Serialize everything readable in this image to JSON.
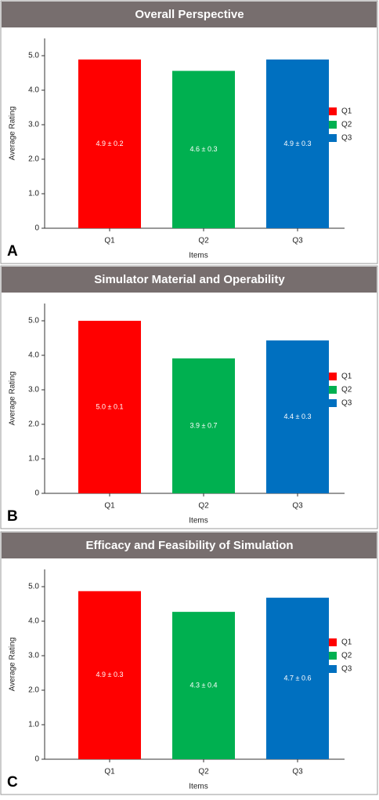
{
  "chart_data": [
    {
      "type": "bar",
      "title": "Overall Perspective",
      "panel_label": "A",
      "xlabel": "Items",
      "ylabel": "Average Rating",
      "categories": [
        "Q1",
        "Q2",
        "Q3"
      ],
      "values": [
        4.89,
        4.56,
        4.89
      ],
      "value_labels": [
        "4.9 ± 0.2",
        "4.6 ± 0.3",
        "4.9 ± 0.3"
      ],
      "colors": [
        "#ff0000",
        "#00b050",
        "#0070c0"
      ],
      "ylim": [
        0,
        5.5
      ],
      "yticks": [
        0,
        {
          "value": 1,
          "label": "1.0"
        },
        {
          "value": 2,
          "label": "2.0"
        },
        {
          "value": 3,
          "label": "3.0"
        },
        {
          "value": 4,
          "label": "4.0"
        },
        {
          "value": 5,
          "label": "5.0"
        }
      ],
      "legend": "right"
    },
    {
      "type": "bar",
      "title": "Simulator Material and Operability",
      "panel_label": "B",
      "xlabel": "Items",
      "ylabel": "Average Rating",
      "categories": [
        "Q1",
        "Q2",
        "Q3"
      ],
      "values": [
        5.0,
        3.91,
        4.43
      ],
      "value_labels": [
        "5.0 ± 0.1",
        "3.9 ± 0.7",
        "4.4 ± 0.3"
      ],
      "colors": [
        "#ff0000",
        "#00b050",
        "#0070c0"
      ],
      "ylim": [
        0,
        5.5
      ],
      "yticks": [
        0,
        {
          "value": 1,
          "label": "1.0"
        },
        {
          "value": 2,
          "label": "2.0"
        },
        {
          "value": 3,
          "label": "3.0"
        },
        {
          "value": 4,
          "label": "4.0"
        },
        {
          "value": 5,
          "label": "5.0"
        }
      ],
      "legend": "right"
    },
    {
      "type": "bar",
      "title": "Efficacy and Feasibility of Simulation",
      "panel_label": "C",
      "xlabel": "Items",
      "ylabel": "Average Rating",
      "categories": [
        "Q1",
        "Q2",
        "Q3"
      ],
      "values": [
        4.87,
        4.27,
        4.68
      ],
      "value_labels": [
        "4.9 ± 0.3",
        "4.3 ± 0.4",
        "4.7 ± 0.6"
      ],
      "colors": [
        "#ff0000",
        "#00b050",
        "#0070c0"
      ],
      "ylim": [
        0,
        5.5
      ],
      "yticks": [
        0,
        {
          "value": 1,
          "label": "1.0"
        },
        {
          "value": 2,
          "label": "2.0"
        },
        {
          "value": 3,
          "label": "3.0"
        },
        {
          "value": 4,
          "label": "4.0"
        },
        {
          "value": 5,
          "label": "5.0"
        }
      ],
      "legend": "right"
    }
  ]
}
